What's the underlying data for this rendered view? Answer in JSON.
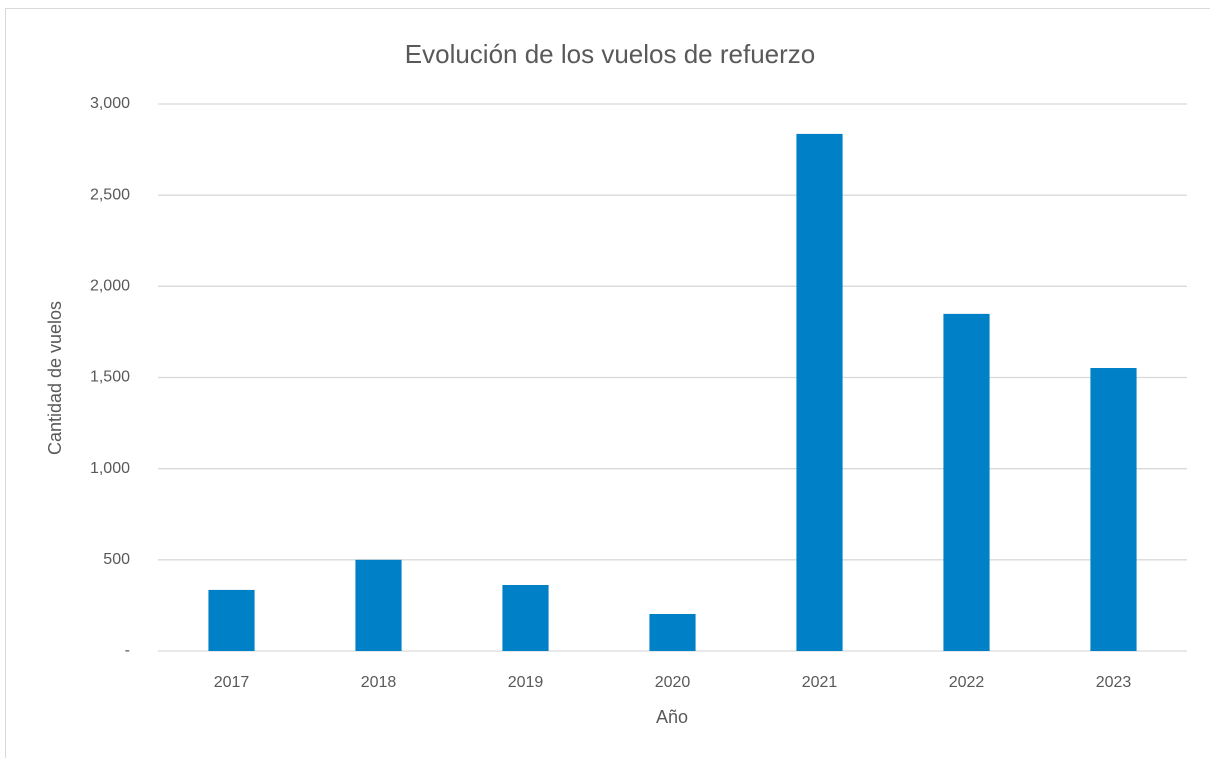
{
  "chart_data": {
    "type": "bar",
    "title": "Evolución de los vuelos de refuerzo",
    "x_label": "Año",
    "y_label": "Cantidad de vuelos",
    "categories": [
      "2017",
      "2018",
      "2019",
      "2020",
      "2021",
      "2022",
      "2023"
    ],
    "values": [
      335,
      500,
      362,
      203,
      2836,
      1849,
      1552
    ],
    "color": "#0080c6",
    "ylim": [
      0,
      3000
    ],
    "yticks": [
      {
        "value": 0,
        "label": "-"
      },
      500,
      {
        "value": 1000,
        "label": "1,000"
      },
      {
        "value": 1500,
        "label": "1,500"
      },
      {
        "value": 2000,
        "label": "2,000"
      },
      {
        "value": 2500,
        "label": "2,500"
      },
      {
        "value": 3000,
        "label": "3,000"
      }
    ],
    "grid": true
  }
}
